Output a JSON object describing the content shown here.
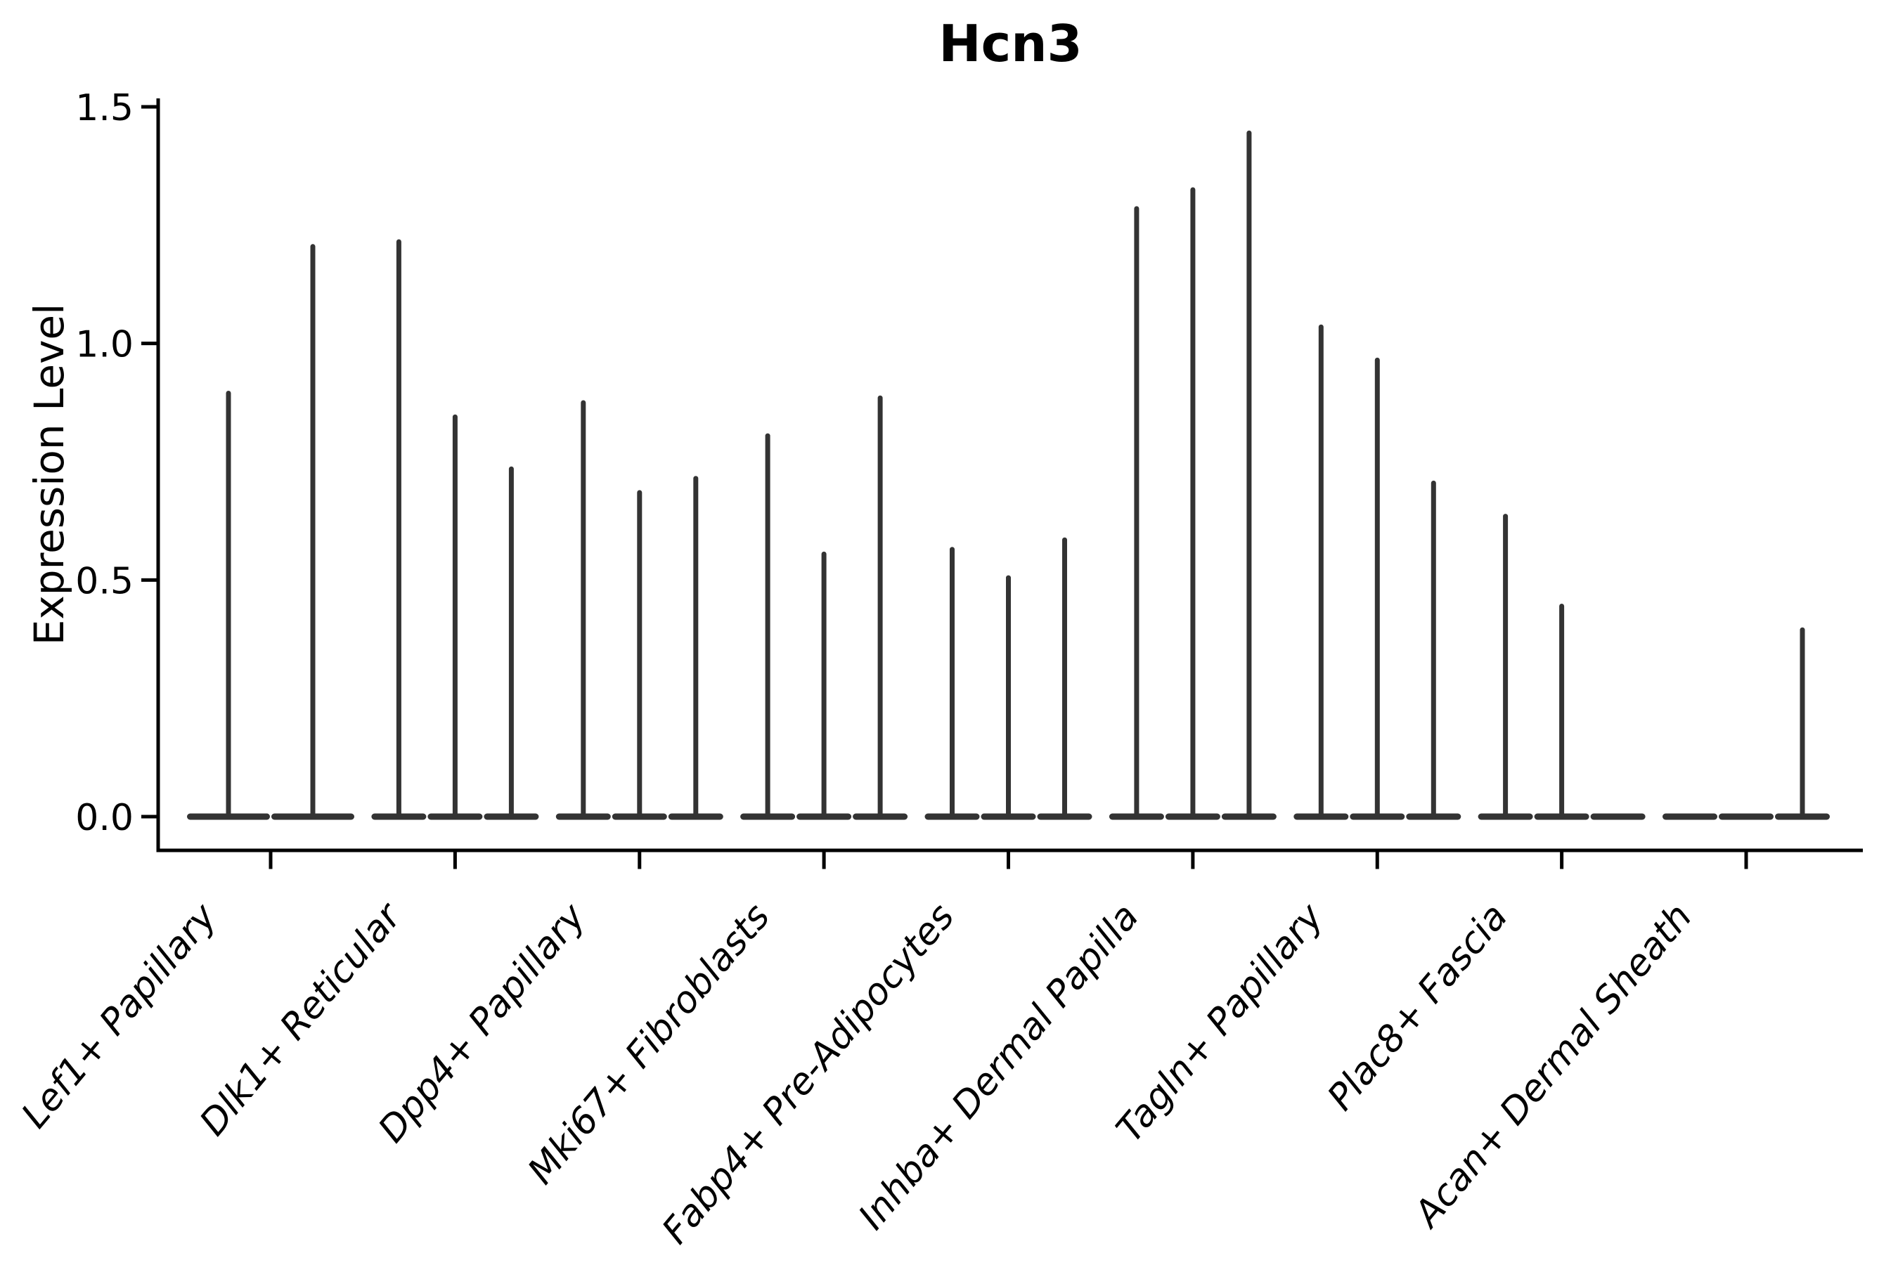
{
  "figure": {
    "title": "Hcn3",
    "ylabel": "Expression Level"
  },
  "chart_data": {
    "type": "violin",
    "title": "Hcn3",
    "xlabel": "",
    "ylabel": "Expression Level",
    "ylim": [
      0,
      1.5
    ],
    "yticks": [
      "0.0",
      "0.5",
      "1.0",
      "1.5"
    ],
    "grid": false,
    "legend_position": "none",
    "shape_note": "needle violins: wide flat base at expression 0 with a thin vertical spike rising to the max expression value; a value of 0 means a flat violin with no spike",
    "categories": [
      "Lef1+ Papillary",
      "Dlk1+ Reticular",
      "Dpp4+ Papillary",
      "Mki67+ Fibroblasts",
      "Fabp4+ Pre-Adipocytes",
      "Inhba+ Dermal Papilla",
      "Tagln+ Papillary",
      "Plac8+ Fascia",
      "Acan+ Dermal Sheath"
    ],
    "groups": [
      {
        "category": "Lef1+ Papillary",
        "violins": [
          0.9,
          1.21
        ]
      },
      {
        "category": "Dlk1+ Reticular",
        "violins": [
          1.22,
          0.85,
          0.74
        ]
      },
      {
        "category": "Dpp4+ Papillary",
        "violins": [
          0.88,
          0.69,
          0.72
        ]
      },
      {
        "category": "Mki67+ Fibroblasts",
        "violins": [
          0.81,
          0.56,
          0.89
        ]
      },
      {
        "category": "Fabp4+ Pre-Adipocytes",
        "violins": [
          0.57,
          0.51,
          0.59
        ]
      },
      {
        "category": "Inhba+ Dermal Papilla",
        "violins": [
          1.29,
          1.33,
          1.45
        ]
      },
      {
        "category": "Tagln+ Papillary",
        "violins": [
          1.04,
          0.97,
          0.71
        ]
      },
      {
        "category": "Plac8+ Fascia",
        "violins": [
          0.64,
          0.45,
          0
        ]
      },
      {
        "category": "Acan+ Dermal Sheath",
        "violins": [
          0,
          0,
          0.4
        ]
      }
    ],
    "colors": {
      "violin_line": "#333333",
      "axis": "#000000",
      "text": "#000000",
      "background": "#ffffff"
    }
  }
}
